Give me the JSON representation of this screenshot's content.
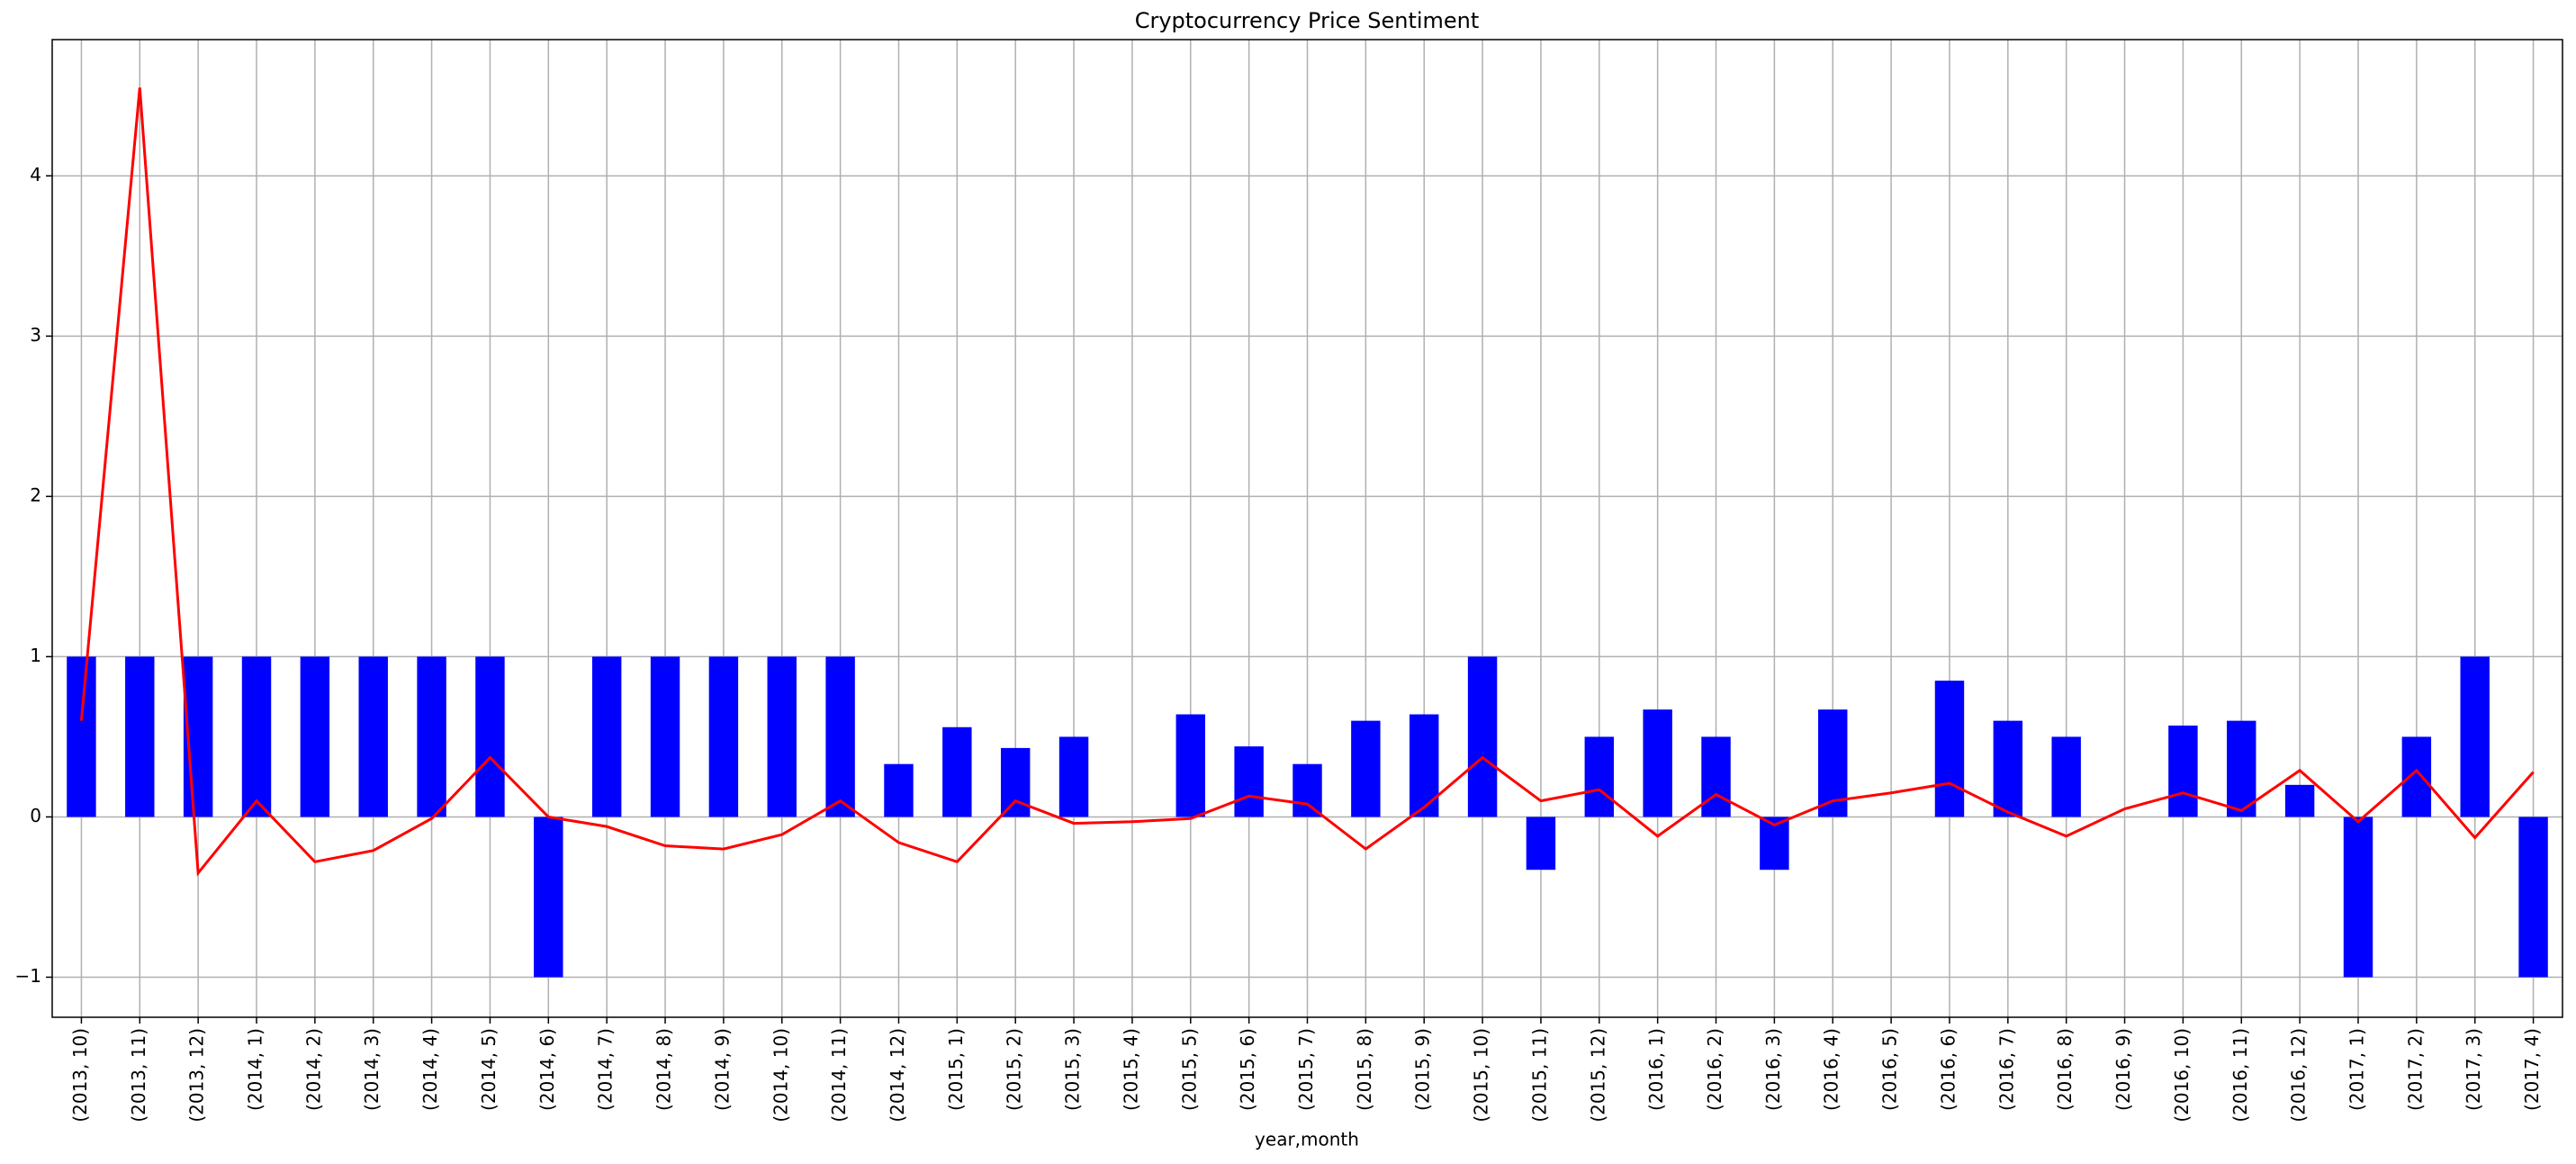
{
  "chart_data": {
    "type": "bar",
    "title": "Cryptocurrency Price Sentiment",
    "x_label": "year,month",
    "categories": [
      "(2013, 10)",
      "(2013, 11)",
      "(2013, 12)",
      "(2014, 1)",
      "(2014, 2)",
      "(2014, 3)",
      "(2014, 4)",
      "(2014, 5)",
      "(2014, 6)",
      "(2014, 7)",
      "(2014, 8)",
      "(2014, 9)",
      "(2014, 10)",
      "(2014, 11)",
      "(2014, 12)",
      "(2015, 1)",
      "(2015, 2)",
      "(2015, 3)",
      "(2015, 4)",
      "(2015, 5)",
      "(2015, 6)",
      "(2015, 7)",
      "(2015, 8)",
      "(2015, 9)",
      "(2015, 10)",
      "(2015, 11)",
      "(2015, 12)",
      "(2016, 1)",
      "(2016, 2)",
      "(2016, 3)",
      "(2016, 4)",
      "(2016, 5)",
      "(2016, 6)",
      "(2016, 7)",
      "(2016, 8)",
      "(2016, 9)",
      "(2016, 10)",
      "(2016, 11)",
      "(2016, 12)",
      "(2017, 1)",
      "(2017, 2)",
      "(2017, 3)",
      "(2017, 4)"
    ],
    "series": [
      {
        "type": "bar",
        "color": "#0000ff",
        "values": [
          1,
          1,
          1,
          1,
          1,
          1,
          1,
          1,
          -1,
          1,
          1,
          1,
          1,
          1,
          0.33,
          0.56,
          0.43,
          0.5,
          0,
          0.64,
          0.44,
          0.33,
          0.6,
          0.64,
          1,
          -0.33,
          0.5,
          0.67,
          0.5,
          -0.33,
          0.67,
          0,
          0.85,
          0.6,
          0.5,
          0,
          0.57,
          0.6,
          0.2,
          -1,
          0.5,
          1,
          -1
        ]
      },
      {
        "type": "line",
        "color": "#ff0000",
        "values": [
          0.6,
          4.55,
          -0.35,
          0.1,
          -0.28,
          -0.21,
          -0.01,
          0.37,
          0.0,
          -0.06,
          -0.18,
          -0.2,
          -0.11,
          0.1,
          -0.16,
          -0.28,
          0.1,
          -0.04,
          -0.03,
          -0.01,
          0.13,
          0.08,
          -0.2,
          0.06,
          0.37,
          0.1,
          0.17,
          -0.12,
          0.14,
          -0.05,
          0.1,
          0.15,
          0.21,
          0.03,
          -0.12,
          0.05,
          0.15,
          0.04,
          0.29,
          -0.03,
          0.29,
          -0.13,
          0.28
        ]
      }
    ],
    "ylim": [
      -1.25,
      4.85
    ],
    "yticks": [
      {
        "value": -1,
        "label": "−1"
      },
      0,
      1,
      2,
      3,
      4
    ],
    "grid": true
  }
}
